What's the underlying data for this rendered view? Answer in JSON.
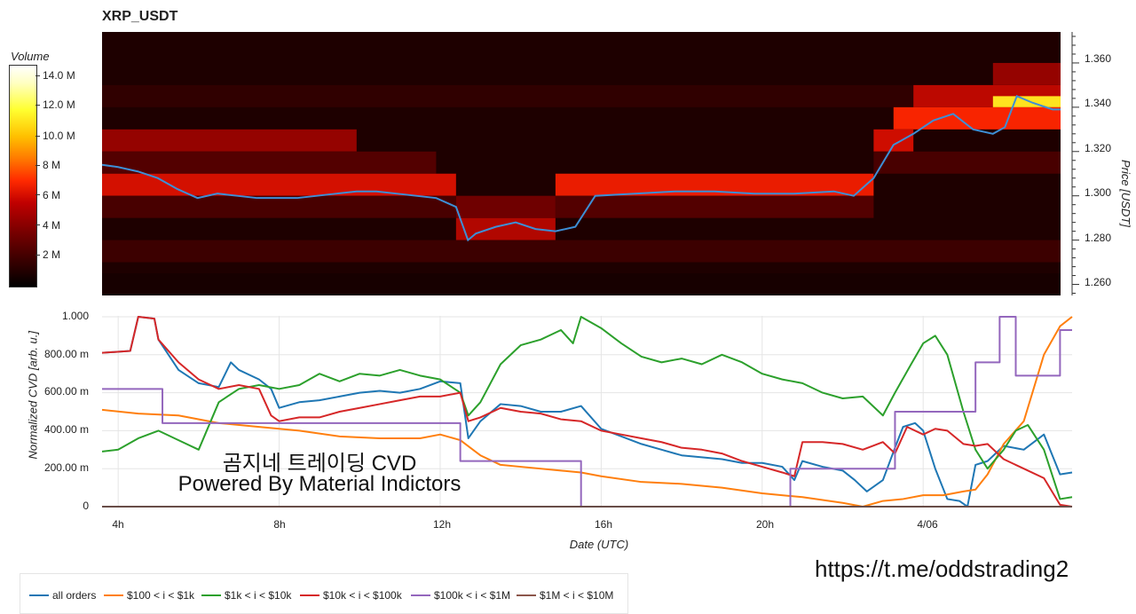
{
  "title": "XRP_USDT",
  "colorbar": {
    "label": "Volume",
    "ticks": [
      "14.0 M",
      "12.0 M",
      "10.0 M",
      "8 M",
      "6 M",
      "4 M",
      "2 M"
    ]
  },
  "heatmap_price_axis": {
    "label": "Price [USDT]",
    "ticks": [
      "1.360",
      "1.340",
      "1.320",
      "1.300",
      "1.280",
      "1.260"
    ]
  },
  "cvd_axis": {
    "ylabel": "Normalized CVD [arb. u.]",
    "yticks": [
      "1.000",
      "800.00 m",
      "600.00 m",
      "400.00 m",
      "200.00 m",
      "0"
    ],
    "xlabel": "Date (UTC)",
    "xticks": [
      "4h",
      "8h",
      "12h",
      "16h",
      "20h",
      "4/06"
    ]
  },
  "overlay_text": {
    "line1": "곰지네 트레이딩 CVD",
    "line2": "Powered By Material Indictors"
  },
  "watermark_url": "https://t.me/oddstrading2",
  "legend": [
    {
      "label": "all orders",
      "color": "#1f77b4"
    },
    {
      "label": "$100 < i < $1k",
      "color": "#ff7f0e"
    },
    {
      "label": "$1k < i < $10k",
      "color": "#2ca02c"
    },
    {
      "label": "$10k < i < $100k",
      "color": "#d62728"
    },
    {
      "label": "$100k < i < $1M",
      "color": "#9467bd"
    },
    {
      "label": "$1M < i < $10M",
      "color": "#8c564b"
    }
  ],
  "chart_data": [
    {
      "type": "heatmap",
      "title": "XRP_USDT",
      "ylabel": "Price [USDT]",
      "ylim": [
        1.255,
        1.374
      ],
      "xlim": [
        3.6,
        27.7
      ],
      "colorbar_range": [
        0,
        15000000
      ],
      "bands": [
        {
          "t0": 3.6,
          "t1": 24.0,
          "p0": 1.34,
          "p1": 1.35,
          "v": 900000
        },
        {
          "t0": 24.0,
          "t1": 27.7,
          "p0": 1.34,
          "p1": 1.35,
          "v": 4500000
        },
        {
          "t0": 26.0,
          "t1": 27.7,
          "p0": 1.34,
          "p1": 1.345,
          "v": 12000000
        },
        {
          "t0": 23.5,
          "t1": 27.7,
          "p0": 1.33,
          "p1": 1.34,
          "v": 6500000
        },
        {
          "t0": 23.0,
          "t1": 24.0,
          "p0": 1.32,
          "p1": 1.33,
          "v": 5000000
        },
        {
          "t0": 23.0,
          "t1": 27.7,
          "p0": 1.31,
          "p1": 1.32,
          "v": 1500000
        },
        {
          "t0": 3.6,
          "t1": 10.0,
          "p0": 1.32,
          "p1": 1.33,
          "v": 3500000
        },
        {
          "t0": 3.6,
          "t1": 12.0,
          "p0": 1.31,
          "p1": 1.32,
          "v": 1800000
        },
        {
          "t0": 3.6,
          "t1": 12.5,
          "p0": 1.3,
          "p1": 1.31,
          "v": 5200000
        },
        {
          "t0": 15.0,
          "t1": 23.0,
          "p0": 1.3,
          "p1": 1.31,
          "v": 6000000
        },
        {
          "t0": 3.6,
          "t1": 12.5,
          "p0": 1.29,
          "p1": 1.3,
          "v": 1500000
        },
        {
          "t0": 15.0,
          "t1": 23.0,
          "p0": 1.29,
          "p1": 1.3,
          "v": 1800000
        },
        {
          "t0": 12.5,
          "t1": 15.0,
          "p0": 1.28,
          "p1": 1.29,
          "v": 4200000
        },
        {
          "t0": 12.5,
          "t1": 15.0,
          "p0": 1.29,
          "p1": 1.3,
          "v": 2500000
        },
        {
          "t0": 3.6,
          "t1": 27.7,
          "p0": 1.27,
          "p1": 1.28,
          "v": 1200000
        },
        {
          "t0": 3.6,
          "t1": 27.7,
          "p0": 1.255,
          "p1": 1.265,
          "v": 300000
        },
        {
          "t0": 26.0,
          "t1": 27.7,
          "p0": 1.35,
          "p1": 1.36,
          "v": 3500000
        }
      ],
      "price_series": {
        "name": "price",
        "x": [
          3.6,
          4.0,
          4.5,
          5.0,
          5.5,
          6.0,
          6.5,
          7.0,
          7.5,
          8.0,
          8.5,
          9.0,
          9.5,
          10.0,
          10.5,
          11.0,
          11.5,
          12.0,
          12.5,
          12.8,
          13.0,
          13.5,
          14.0,
          14.5,
          15.0,
          15.5,
          16.0,
          17.0,
          18.0,
          19.0,
          20.0,
          21.0,
          22.0,
          22.5,
          23.0,
          23.5,
          24.0,
          24.5,
          25.0,
          25.5,
          26.0,
          26.3,
          26.6,
          27.0,
          27.5,
          27.7
        ],
        "y": [
          1.314,
          1.313,
          1.311,
          1.308,
          1.303,
          1.299,
          1.301,
          1.3,
          1.299,
          1.299,
          1.299,
          1.3,
          1.301,
          1.302,
          1.302,
          1.301,
          1.3,
          1.299,
          1.295,
          1.28,
          1.283,
          1.286,
          1.288,
          1.285,
          1.284,
          1.286,
          1.3,
          1.301,
          1.302,
          1.302,
          1.301,
          1.301,
          1.302,
          1.3,
          1.308,
          1.323,
          1.328,
          1.334,
          1.337,
          1.33,
          1.328,
          1.331,
          1.345,
          1.342,
          1.339,
          1.339
        ]
      }
    },
    {
      "type": "line",
      "xlabel": "Date (UTC)",
      "ylabel": "Normalized CVD [arb. u.]",
      "xlim": [
        3.6,
        27.7
      ],
      "ylim": [
        0,
        1.0
      ],
      "grid": true,
      "legend_placement": "bottom-left",
      "series": [
        {
          "name": "all orders",
          "color": "#1f77b4",
          "x": [
            3.6,
            4.3,
            4.5,
            4.9,
            5.0,
            5.5,
            6.0,
            6.5,
            6.8,
            7.0,
            7.5,
            7.8,
            8.0,
            8.5,
            9.0,
            9.5,
            10.0,
            10.5,
            11.0,
            11.5,
            12.0,
            12.5,
            12.7,
            13.0,
            13.5,
            14.0,
            14.5,
            15.0,
            15.5,
            16.0,
            16.5,
            17.0,
            17.5,
            18.0,
            18.5,
            19.0,
            19.5,
            20.0,
            20.5,
            20.8,
            21.0,
            21.5,
            22.0,
            22.3,
            22.6,
            23.0,
            23.3,
            23.5,
            23.8,
            24.0,
            24.3,
            24.6,
            24.9,
            25.1,
            25.3,
            25.6,
            26.0,
            26.5,
            27.0,
            27.4,
            27.7
          ],
          "y": [
            0.81,
            0.82,
            1.0,
            0.99,
            0.88,
            0.72,
            0.65,
            0.63,
            0.76,
            0.72,
            0.67,
            0.62,
            0.52,
            0.55,
            0.56,
            0.58,
            0.6,
            0.61,
            0.6,
            0.62,
            0.66,
            0.65,
            0.36,
            0.45,
            0.54,
            0.53,
            0.5,
            0.5,
            0.53,
            0.41,
            0.37,
            0.33,
            0.3,
            0.27,
            0.26,
            0.25,
            0.23,
            0.23,
            0.21,
            0.14,
            0.24,
            0.21,
            0.19,
            0.14,
            0.08,
            0.14,
            0.31,
            0.42,
            0.44,
            0.4,
            0.2,
            0.04,
            0.03,
            0.0,
            0.22,
            0.24,
            0.32,
            0.3,
            0.38,
            0.17,
            0.18
          ]
        },
        {
          "name": "$100 < i < $1k",
          "color": "#ff7f0e",
          "x": [
            3.6,
            4.5,
            5.5,
            6.5,
            7.5,
            8.5,
            9.5,
            10.5,
            11.5,
            12.0,
            12.5,
            13.0,
            13.5,
            14.0,
            15.0,
            15.5,
            16.0,
            17.0,
            18.0,
            19.0,
            20.0,
            21.0,
            22.0,
            22.5,
            23.0,
            23.5,
            24.0,
            24.5,
            25.0,
            25.3,
            25.6,
            26.0,
            26.5,
            27.0,
            27.4,
            27.7
          ],
          "y": [
            0.51,
            0.49,
            0.48,
            0.44,
            0.42,
            0.4,
            0.37,
            0.36,
            0.36,
            0.38,
            0.35,
            0.27,
            0.22,
            0.21,
            0.19,
            0.18,
            0.16,
            0.13,
            0.12,
            0.1,
            0.07,
            0.05,
            0.02,
            0.0,
            0.03,
            0.04,
            0.06,
            0.06,
            0.08,
            0.09,
            0.17,
            0.33,
            0.45,
            0.8,
            0.95,
            1.0
          ]
        },
        {
          "name": "$1k < i < $10k",
          "color": "#2ca02c",
          "x": [
            3.6,
            4.0,
            4.5,
            5.0,
            5.5,
            6.0,
            6.5,
            7.0,
            7.5,
            8.0,
            8.5,
            9.0,
            9.5,
            10.0,
            10.5,
            11.0,
            11.5,
            12.0,
            12.5,
            12.7,
            13.0,
            13.5,
            14.0,
            14.5,
            15.0,
            15.3,
            15.5,
            16.0,
            16.5,
            17.0,
            17.5,
            18.0,
            18.5,
            19.0,
            19.5,
            20.0,
            20.5,
            21.0,
            21.5,
            22.0,
            22.5,
            23.0,
            23.3,
            23.7,
            24.0,
            24.3,
            24.6,
            25.0,
            25.3,
            25.6,
            26.0,
            26.3,
            26.6,
            27.0,
            27.4,
            27.7
          ],
          "y": [
            0.29,
            0.3,
            0.36,
            0.4,
            0.35,
            0.3,
            0.55,
            0.62,
            0.64,
            0.62,
            0.64,
            0.7,
            0.66,
            0.7,
            0.69,
            0.72,
            0.69,
            0.67,
            0.6,
            0.48,
            0.55,
            0.75,
            0.85,
            0.88,
            0.93,
            0.86,
            1.0,
            0.94,
            0.86,
            0.79,
            0.76,
            0.78,
            0.75,
            0.8,
            0.76,
            0.7,
            0.67,
            0.65,
            0.6,
            0.57,
            0.58,
            0.48,
            0.6,
            0.75,
            0.86,
            0.9,
            0.8,
            0.5,
            0.3,
            0.2,
            0.3,
            0.4,
            0.43,
            0.3,
            0.04,
            0.05
          ]
        },
        {
          "name": "$10k < i < $100k",
          "color": "#d62728",
          "x": [
            3.6,
            4.3,
            4.5,
            4.9,
            5.0,
            5.5,
            6.0,
            6.5,
            7.0,
            7.5,
            7.8,
            8.0,
            8.5,
            9.0,
            9.5,
            10.0,
            10.5,
            11.0,
            11.5,
            12.0,
            12.5,
            12.7,
            13.0,
            13.5,
            14.0,
            14.5,
            15.0,
            15.5,
            16.0,
            16.5,
            17.0,
            17.5,
            18.0,
            18.5,
            19.0,
            19.5,
            20.0,
            20.5,
            20.8,
            21.0,
            21.5,
            22.0,
            22.5,
            23.0,
            23.3,
            23.6,
            24.0,
            24.3,
            24.6,
            25.0,
            25.3,
            25.6,
            26.0,
            26.5,
            27.0,
            27.4,
            27.7
          ],
          "y": [
            0.81,
            0.82,
            1.0,
            0.99,
            0.88,
            0.76,
            0.67,
            0.62,
            0.64,
            0.62,
            0.48,
            0.45,
            0.47,
            0.47,
            0.5,
            0.52,
            0.54,
            0.56,
            0.58,
            0.58,
            0.6,
            0.45,
            0.47,
            0.52,
            0.5,
            0.49,
            0.46,
            0.45,
            0.4,
            0.38,
            0.36,
            0.34,
            0.31,
            0.3,
            0.28,
            0.24,
            0.21,
            0.18,
            0.16,
            0.34,
            0.34,
            0.33,
            0.3,
            0.34,
            0.28,
            0.42,
            0.38,
            0.41,
            0.4,
            0.33,
            0.32,
            0.33,
            0.25,
            0.2,
            0.15,
            0.01,
            0.0
          ]
        },
        {
          "name": "$100k < i < $1M",
          "color": "#9467bd",
          "x": [
            3.6,
            5.1,
            5.1,
            12.5,
            12.5,
            15.5,
            15.5,
            20.7,
            20.7,
            23.3,
            23.3,
            25.3,
            25.3,
            25.9,
            25.9,
            26.3,
            26.3,
            26.9,
            26.9,
            27.4,
            27.4,
            27.7
          ],
          "y": [
            0.62,
            0.62,
            0.44,
            0.44,
            0.24,
            0.24,
            0.0,
            0.0,
            0.2,
            0.2,
            0.5,
            0.5,
            0.76,
            0.76,
            1.0,
            1.0,
            0.69,
            0.69,
            0.69,
            0.69,
            0.93,
            0.93
          ]
        },
        {
          "name": "$1M < i < $10M",
          "color": "#8c564b",
          "x": [
            3.6,
            27.7
          ],
          "y": [
            0.0,
            0.0
          ]
        }
      ]
    }
  ]
}
